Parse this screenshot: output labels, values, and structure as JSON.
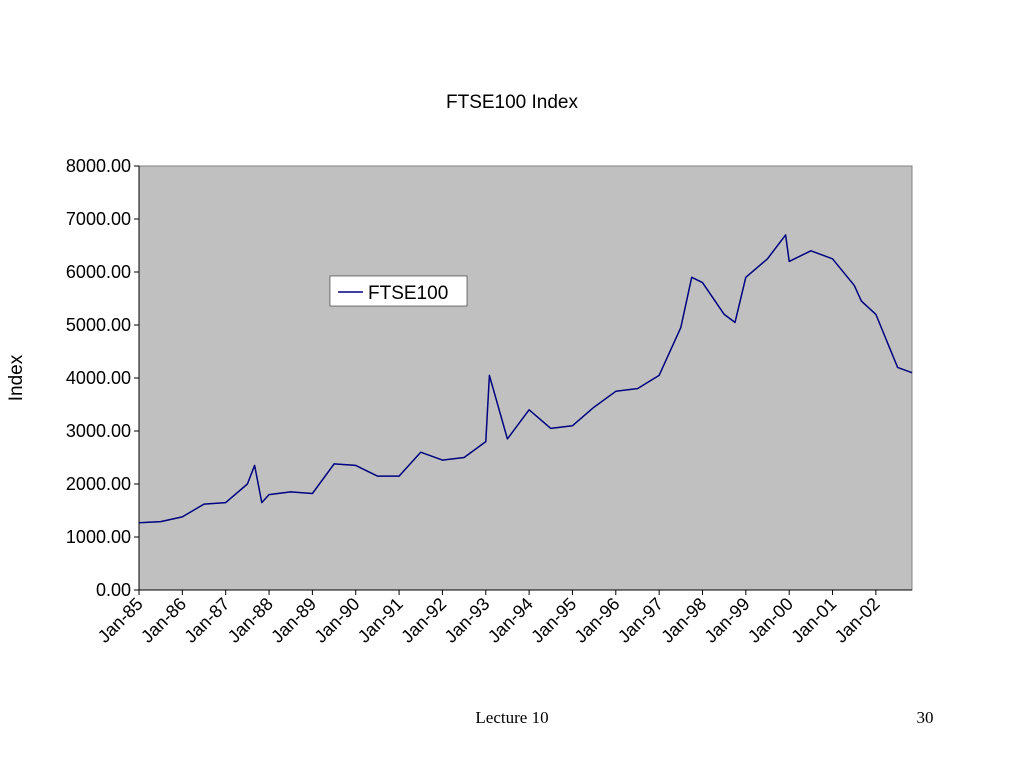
{
  "footer": {
    "lecture": "Lecture 10",
    "page_number": "30"
  },
  "colors": {
    "plot_background": "#c0c0c0",
    "series_line": "#000080",
    "axis": "#808080"
  },
  "chart_data": {
    "type": "line",
    "title": "FTSE100 Index",
    "xlabel": "",
    "ylabel": "Index",
    "ylim": [
      0,
      8000
    ],
    "ytick_labels": [
      "0.00",
      "1000.00",
      "2000.00",
      "3000.00",
      "4000.00",
      "5000.00",
      "6000.00",
      "7000.00",
      "8000.00"
    ],
    "xtick_labels": [
      "Jan-85",
      "Jan-86",
      "Jan-87",
      "Jan-88",
      "Jan-89",
      "Jan-90",
      "Jan-91",
      "Jan-92",
      "Jan-93",
      "Jan-94",
      "Jan-95",
      "Jan-96",
      "Jan-97",
      "Jan-98",
      "Jan-99",
      "Jan-00",
      "Jan-01",
      "Jan-02"
    ],
    "grid": false,
    "legend_position": "upper-left-inside",
    "x_start": "Jan-85",
    "x_end": "Nov-02",
    "series": [
      {
        "name": "FTSE100",
        "color": "#000080",
        "x": [
          "Jan-85",
          "Jul-85",
          "Jan-86",
          "Jul-86",
          "Jan-87",
          "Jul-87",
          "Sep-87",
          "Nov-87",
          "Jan-88",
          "Jul-88",
          "Jan-89",
          "Jul-89",
          "Jan-90",
          "Jul-90",
          "Jan-91",
          "Jul-91",
          "Jan-92",
          "Jul-92",
          "Jan-93",
          "Feb-93",
          "Jul-93",
          "Jan-94",
          "Jul-94",
          "Jan-95",
          "Jul-95",
          "Jan-96",
          "Jul-96",
          "Jan-97",
          "Jul-97",
          "Oct-97",
          "Jan-98",
          "Jul-98",
          "Oct-98",
          "Jan-99",
          "Jul-99",
          "Dec-99",
          "Jan-00",
          "Jul-00",
          "Jan-01",
          "Jul-01",
          "Sep-01",
          "Jan-02",
          "Jul-02",
          "Nov-02"
        ],
        "values": [
          1270,
          1290,
          1380,
          1620,
          1650,
          2000,
          2350,
          1650,
          1800,
          1850,
          1820,
          2380,
          2350,
          2150,
          2150,
          2600,
          2450,
          2500,
          2800,
          4050,
          2850,
          3400,
          3050,
          3100,
          3450,
          3750,
          3800,
          4050,
          4950,
          5900,
          5800,
          5200,
          5050,
          5900,
          6250,
          6700,
          6200,
          6400,
          6250,
          5750,
          5450,
          5200,
          4200,
          4100
        ]
      }
    ]
  }
}
